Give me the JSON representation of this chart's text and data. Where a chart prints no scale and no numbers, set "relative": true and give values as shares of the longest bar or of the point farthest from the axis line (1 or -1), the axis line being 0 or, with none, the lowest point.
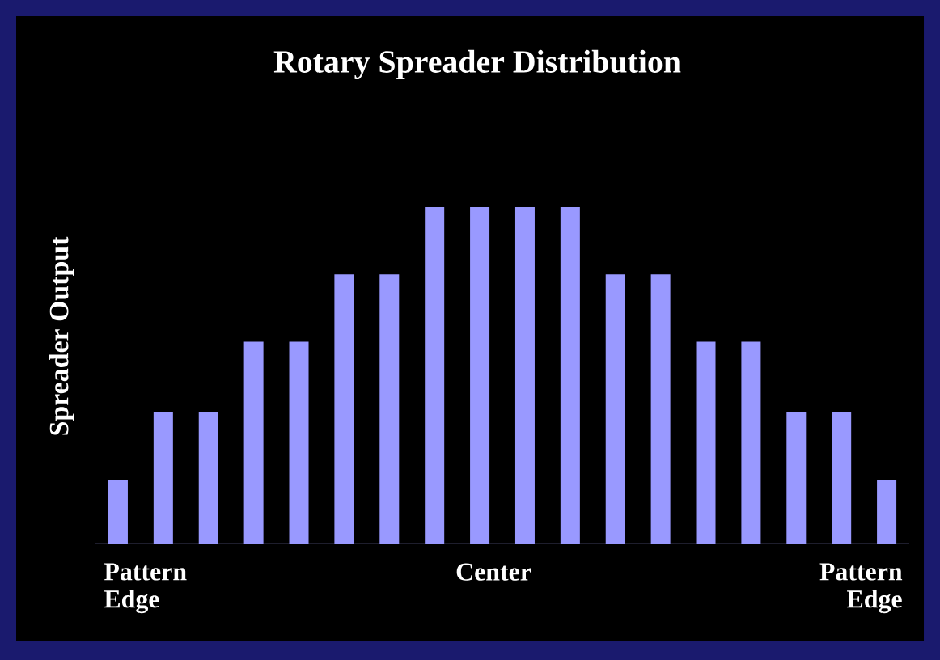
{
  "chart_data": {
    "type": "bar",
    "title": "Rotary Spreader Distribution",
    "ylabel": "Spreader Output",
    "categories": [
      null,
      null,
      null,
      null,
      null,
      null,
      null,
      null,
      null,
      null,
      null,
      null,
      null,
      null,
      null,
      null,
      null,
      null
    ],
    "values": [
      0.19,
      0.39,
      0.39,
      0.6,
      0.6,
      0.8,
      0.8,
      1,
      1,
      1,
      1,
      0.8,
      0.8,
      0.6,
      0.6,
      0.39,
      0.39,
      0.19
    ],
    "color": "#9999ff",
    "relative": true,
    "annotations": [
      "Pattern Edge",
      "Center",
      "Pattern Edge"
    ]
  }
}
